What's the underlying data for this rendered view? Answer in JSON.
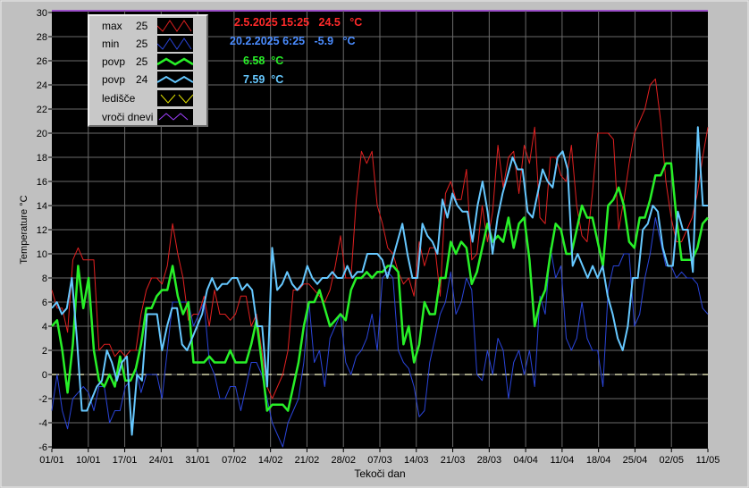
{
  "chart_data": {
    "type": "line",
    "xlabel": "Tekoči dan",
    "ylabel": "Temperature °C",
    "ylim": [
      -6,
      30
    ],
    "yticks": [
      -6,
      -4,
      -2,
      0,
      2,
      4,
      6,
      8,
      10,
      12,
      14,
      16,
      18,
      20,
      22,
      24,
      26,
      28,
      30
    ],
    "xticks": [
      "01/01",
      "10/01",
      "17/01",
      "24/01",
      "31/01",
      "07/02",
      "14/02",
      "21/02",
      "28/02",
      "07/03",
      "14/03",
      "21/03",
      "28/03",
      "04/04",
      "11/04",
      "18/04",
      "25/04",
      "02/05",
      "11/05"
    ],
    "day_span": [
      0,
      131
    ],
    "background": "#000000",
    "plot_border": "#9c4fc8",
    "series": [
      {
        "name": "max",
        "count": "25",
        "color": "#e02020",
        "width": 1,
        "values": [
          7,
          5.5,
          5.5,
          3.5,
          9.5,
          10.5,
          9.5,
          9.5,
          9.5,
          2,
          2.5,
          2.5,
          1.5,
          2,
          1.5,
          2,
          2,
          5,
          7,
          8,
          8,
          7.5,
          9,
          12.5,
          10,
          8,
          4.5,
          5,
          5,
          6.5,
          4,
          7,
          5,
          5,
          4.5,
          5,
          6.5,
          6.5,
          4,
          5,
          2,
          -1,
          -2,
          -1,
          0,
          2,
          7,
          7,
          7.5,
          7.5,
          7,
          6.5,
          6,
          7,
          9,
          11.5,
          8,
          8,
          14.5,
          18.5,
          17.5,
          18.5,
          14,
          12.5,
          10.5,
          10,
          8.5,
          7.5,
          8,
          6.5,
          11,
          9,
          10.5,
          10.5,
          6.5,
          15,
          16,
          14.5,
          14.5,
          17,
          9.5,
          10,
          14,
          11,
          13.5,
          19,
          15.5,
          18,
          18.5,
          15,
          19,
          17.5,
          20.5,
          13,
          12.5,
          18,
          18,
          16.5,
          16,
          19,
          14,
          11.5,
          11,
          15,
          20,
          20,
          20,
          19.5,
          12,
          14.5,
          17.5,
          20,
          21,
          22,
          24,
          24.5,
          21,
          16,
          13,
          11,
          11,
          12,
          13,
          15,
          18,
          20.5
        ]
      },
      {
        "name": "min",
        "count": "25",
        "color": "#2a44d8",
        "width": 1,
        "values": [
          -3,
          0,
          -3,
          -4.5,
          -2,
          -1.5,
          -1,
          -1.5,
          -3,
          -1,
          -1,
          -4,
          -3,
          -3,
          -1,
          -0.5,
          0.5,
          -1.5,
          0,
          0,
          0,
          -2,
          2,
          6,
          6,
          6,
          6,
          4,
          5,
          6,
          1,
          0,
          -2,
          -2,
          -1,
          -1,
          -3,
          -1,
          1,
          1,
          0,
          -2,
          -4,
          -5,
          -6,
          -4,
          -3,
          -2,
          1,
          6,
          1,
          2,
          -1,
          3,
          4,
          5,
          1,
          0,
          1.5,
          2,
          3,
          5,
          2,
          8,
          8.5,
          8,
          2,
          1,
          0.5,
          -1,
          -3.5,
          -3,
          1,
          3,
          5,
          6,
          8.5,
          5,
          6,
          8,
          7,
          0,
          -0.5,
          2,
          0,
          3,
          2,
          -2,
          1,
          2,
          0,
          2,
          -1,
          6.5,
          5,
          10.5,
          8,
          9,
          3,
          2,
          3,
          6,
          3,
          2,
          2,
          -1,
          7,
          9,
          9,
          10,
          10,
          4,
          5,
          8,
          10,
          13,
          11,
          9,
          9,
          8,
          8.5,
          8,
          8,
          7.5,
          5.5,
          5
        ]
      },
      {
        "name": "povp",
        "count": "25",
        "color": "#28f028",
        "width": 2.5,
        "values": [
          4,
          4.5,
          2,
          -1.5,
          2.5,
          9,
          5.5,
          8,
          2,
          -0.5,
          -1,
          0,
          -1,
          1.5,
          -0.5,
          -0.5,
          0.5,
          2.5,
          5.5,
          5.5,
          6.5,
          7,
          7,
          9,
          6.5,
          5,
          6,
          1,
          1,
          1,
          1.5,
          1,
          1,
          1,
          2,
          1,
          1,
          1,
          2.5,
          4.5,
          1,
          -3,
          -2.5,
          -2.5,
          -2.5,
          -3,
          -1,
          1,
          4,
          6,
          6,
          7,
          5.5,
          4,
          4.5,
          5,
          4.5,
          7,
          8,
          8,
          8.5,
          8,
          8.5,
          8.5,
          9,
          9,
          8.5,
          2.5,
          4,
          1,
          2.5,
          6,
          5,
          5,
          8,
          8,
          11,
          10,
          11,
          10.5,
          7.5,
          8.5,
          10.5,
          12.5,
          11,
          11.5,
          11,
          13,
          10.5,
          12.5,
          13,
          9.5,
          4,
          6,
          7,
          10,
          12.5,
          12,
          10,
          10,
          12,
          14,
          13,
          13,
          11,
          9,
          14,
          14.5,
          15.5,
          14,
          11,
          10.5,
          13,
          13,
          14.5,
          16.5,
          16.5,
          17.5,
          17.5,
          13,
          9.5,
          9.5,
          9.5,
          10.5,
          12.5,
          13
        ]
      },
      {
        "name": "povp",
        "count": "24",
        "color": "#66c8ff",
        "width": 2,
        "values": [
          5.5,
          6,
          5,
          5.5,
          8,
          3,
          -3,
          -3,
          -2,
          -1,
          -0.5,
          2,
          1,
          -0.5,
          1,
          1.5,
          -5,
          0,
          -0.5,
          5,
          5,
          5,
          2,
          4,
          5.5,
          5.5,
          2.5,
          2,
          3,
          4,
          5,
          7,
          8,
          7,
          7.5,
          7.5,
          8,
          8,
          7,
          7.5,
          7,
          4,
          4,
          -1,
          10.5,
          7,
          7.5,
          8.5,
          7.5,
          7,
          7.5,
          9,
          8,
          7.5,
          8,
          8,
          8.5,
          8,
          8,
          9,
          8,
          8.5,
          8.5,
          10,
          10,
          10,
          9.5,
          8,
          9.5,
          11,
          12.5,
          10,
          8,
          8,
          12.5,
          11.5,
          11,
          10,
          14.5,
          13,
          15,
          14,
          13.5,
          13.5,
          11,
          14,
          16,
          13.5,
          10,
          13,
          15,
          16.5,
          18,
          17,
          17,
          13.5,
          13,
          15,
          17,
          16,
          15.5,
          18,
          18.5,
          17,
          9,
          10,
          9,
          8,
          9,
          8,
          9,
          6.5,
          5,
          3,
          2,
          4,
          8,
          8,
          12,
          12.5,
          14,
          13.5,
          10.5,
          9,
          9,
          13.5,
          12,
          12,
          8.5,
          20.5,
          14,
          14
        ]
      },
      {
        "name": "ledišče",
        "count": "",
        "color": "#e0e000",
        "width": 1,
        "values": []
      },
      {
        "name": "vroči dnevi",
        "count": "",
        "color": "#a040ff",
        "width": 1,
        "values": []
      }
    ],
    "reference_line": {
      "y": 0,
      "color": "#ffffcc",
      "dashed": true
    }
  },
  "readouts": [
    {
      "text": "2.5.2025 15:25   24.5   °C",
      "color": "#ff2a2a"
    },
    {
      "text": "20.2.2025 6:25   -5.9   °C",
      "color": "#4a8cff"
    },
    {
      "text": "6.58  °C",
      "color": "#28f028"
    },
    {
      "text": "7.59  °C",
      "color": "#66c8ff"
    }
  ]
}
